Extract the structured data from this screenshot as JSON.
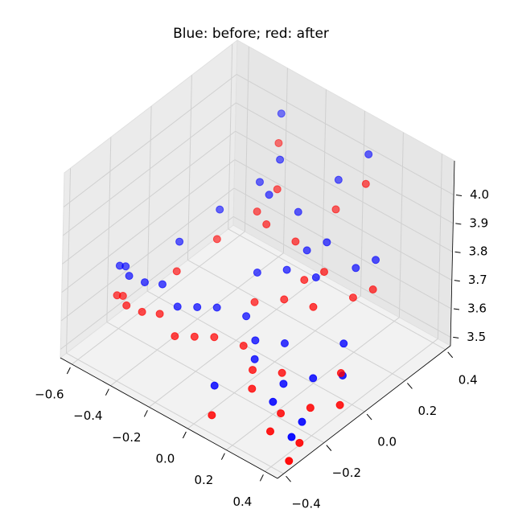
{
  "chart_data": {
    "type": "scatter3d",
    "title": "Blue: before; red: after",
    "xlim": [
      -0.66,
      0.465
    ],
    "ylim": [
      -0.43,
      0.425
    ],
    "zlim": [
      3.47,
      4.12
    ],
    "xticks": [
      {
        "value": -0.6,
        "label": "−0.6"
      },
      {
        "value": -0.4,
        "label": "−0.4"
      },
      {
        "value": -0.2,
        "label": "−0.2"
      },
      {
        "value": 0,
        "label": "0.0"
      },
      0.2,
      0.4
    ],
    "yticks": [
      {
        "value": -0.4,
        "label": "−0.4"
      },
      {
        "value": -0.2,
        "label": "−0.2"
      },
      {
        "value": 0,
        "label": "0.0"
      },
      0.2,
      0.4
    ],
    "zticks": [
      3.5,
      3.6,
      3.7,
      3.8,
      3.9,
      {
        "value": 4,
        "label": "4.0"
      }
    ],
    "grid": true,
    "series": [
      {
        "color": "#0000ff",
        "x": [
          -0.59,
          -0.57,
          -0.5,
          -0.45,
          -0.4,
          -0.3,
          -0.25,
          -0.2,
          -0.1,
          0,
          0.05,
          0.1,
          0.2,
          0.25,
          0.35,
          0.4,
          0.3,
          -0.15,
          -0.05,
          0,
          0.05,
          -0.1,
          -0.2,
          -0.25,
          -0.3,
          0.1,
          0.15,
          0.2,
          -0.05,
          0.05,
          -0.35,
          -0.4,
          0.3,
          0.4,
          -0.45,
          0
        ],
        "y": [
          -0.21,
          -0.2,
          -0.25,
          -0.22,
          -0.18,
          -0.2,
          -0.15,
          -0.1,
          -0.05,
          -0.1,
          -0.15,
          -0.05,
          -0.15,
          -0.25,
          -0.2,
          -0.3,
          -0.1,
          0.05,
          0.1,
          0.15,
          0.2,
          0.2,
          0.15,
          0.25,
          0.2,
          0.1,
          0.25,
          0.3,
          0.35,
          0.4,
          0.35,
          0.1,
          0.05,
          -0.05,
          -0.05,
          -0.3
        ],
        "z": [
          3.7,
          3.7,
          3.72,
          3.7,
          3.69,
          3.66,
          3.65,
          3.64,
          3.62,
          3.6,
          3.58,
          3.6,
          3.55,
          3.56,
          3.5,
          3.52,
          3.58,
          3.7,
          3.72,
          3.78,
          3.8,
          3.85,
          3.9,
          3.95,
          3.88,
          3.75,
          3.72,
          3.74,
          3.9,
          4,
          4.02,
          3.8,
          3.62,
          3.6,
          3.75,
          3.55
        ]
      },
      {
        "color": "#ff0000",
        "x": [
          -0.57,
          -0.55,
          -0.48,
          -0.43,
          -0.38,
          -0.28,
          -0.23,
          -0.18,
          -0.08,
          0.02,
          0.07,
          0.12,
          0.22,
          0.27,
          0.37,
          0.42,
          0.32,
          -0.13,
          -0.03,
          0.02,
          0.07,
          -0.08,
          -0.18,
          -0.23,
          -0.28,
          0.12,
          0.17,
          0.22,
          -0.03,
          0.07,
          -0.33,
          -0.38,
          0.32,
          0.42,
          -0.43,
          0.02
        ],
        "y": [
          -0.24,
          -0.23,
          -0.28,
          -0.25,
          -0.21,
          -0.23,
          -0.18,
          -0.13,
          -0.08,
          -0.13,
          -0.18,
          -0.08,
          -0.18,
          -0.28,
          -0.23,
          -0.33,
          -0.13,
          0.02,
          0.07,
          0.12,
          0.17,
          0.17,
          0.12,
          0.22,
          0.17,
          0.07,
          0.22,
          0.27,
          0.32,
          0.37,
          0.32,
          0.07,
          0.02,
          -0.08,
          -0.08,
          -0.33
        ],
        "z": [
          3.62,
          3.62,
          3.64,
          3.62,
          3.61,
          3.58,
          3.57,
          3.56,
          3.54,
          3.52,
          3.5,
          3.52,
          3.47,
          3.48,
          3.45,
          3.46,
          3.5,
          3.62,
          3.64,
          3.7,
          3.72,
          3.77,
          3.82,
          3.87,
          3.8,
          3.67,
          3.64,
          3.66,
          3.82,
          3.92,
          3.94,
          3.72,
          3.54,
          3.52,
          3.67,
          3.47
        ]
      }
    ]
  }
}
